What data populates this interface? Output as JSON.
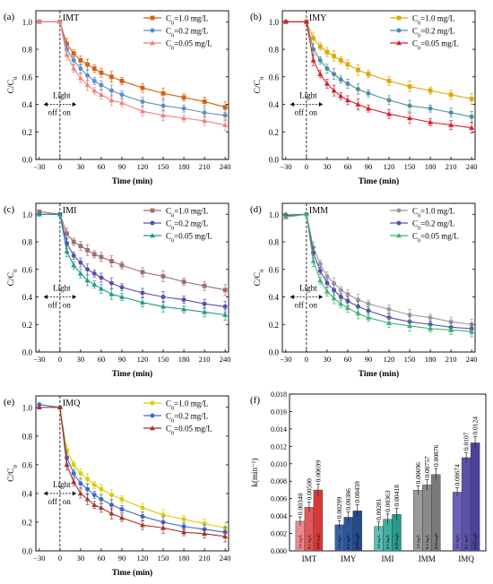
{
  "chart_data": [
    {
      "type": "line",
      "panel_label": "(a)",
      "inset_title": "IMT",
      "xlabel": "Time (min)",
      "ylabel": "C/C0",
      "xlim": [
        -35,
        245
      ],
      "ylim": [
        0.0,
        1.08
      ],
      "xticks": [
        "−30",
        "0",
        "30",
        "60",
        "90",
        "120",
        "150",
        "180",
        "210",
        "240"
      ],
      "yticks": [
        "0.0",
        "0.2",
        "0.4",
        "0.6",
        "0.8",
        "1.0"
      ],
      "light_label": "Light",
      "off_label": "off",
      "on_label": "on",
      "legend_position": "top-right",
      "x": [
        -30,
        0,
        10,
        20,
        30,
        40,
        50,
        60,
        75,
        90,
        120,
        150,
        180,
        210,
        240
      ],
      "series": [
        {
          "name": "C0=1.0 mg/L",
          "color": "#d95f0e",
          "marker": "square",
          "values": [
            1.0,
            1.0,
            0.84,
            0.77,
            0.72,
            0.69,
            0.66,
            0.63,
            0.6,
            0.57,
            0.52,
            0.48,
            0.45,
            0.42,
            0.38
          ]
        },
        {
          "name": "C0=0.2 mg/L",
          "color": "#5b8fc7",
          "marker": "circle",
          "values": [
            1.0,
            1.0,
            0.8,
            0.72,
            0.66,
            0.61,
            0.57,
            0.54,
            0.5,
            0.47,
            0.42,
            0.39,
            0.37,
            0.34,
            0.32
          ]
        },
        {
          "name": "C0=0.05 mg/L",
          "color": "#f08080",
          "marker": "triangle",
          "values": [
            1.0,
            1.0,
            0.76,
            0.66,
            0.59,
            0.54,
            0.5,
            0.47,
            0.43,
            0.41,
            0.35,
            0.32,
            0.3,
            0.28,
            0.25
          ]
        }
      ]
    },
    {
      "type": "line",
      "panel_label": "(b)",
      "inset_title": "IMY",
      "xlabel": "Time (min)",
      "ylabel": "C/C0",
      "xlim": [
        -35,
        245
      ],
      "ylim": [
        0.0,
        1.08
      ],
      "xticks": [
        "−30",
        "0",
        "30",
        "60",
        "90",
        "120",
        "150",
        "180",
        "210",
        "240"
      ],
      "yticks": [
        "0.0",
        "0.2",
        "0.4",
        "0.6",
        "0.8",
        "1.0"
      ],
      "light_label": "Light",
      "off_label": "off",
      "on_label": "on",
      "legend_position": "top-right",
      "x": [
        -30,
        0,
        10,
        20,
        30,
        40,
        50,
        60,
        75,
        90,
        120,
        150,
        180,
        210,
        240
      ],
      "series": [
        {
          "name": "C0=1.0 mg/L",
          "color": "#e0a800",
          "marker": "square",
          "values": [
            1.0,
            1.0,
            0.88,
            0.82,
            0.78,
            0.75,
            0.72,
            0.69,
            0.65,
            0.62,
            0.57,
            0.53,
            0.5,
            0.47,
            0.44
          ]
        },
        {
          "name": "C0=0.2 mg/L",
          "color": "#4a8fa0",
          "marker": "circle",
          "values": [
            1.0,
            1.0,
            0.8,
            0.72,
            0.66,
            0.62,
            0.58,
            0.55,
            0.51,
            0.48,
            0.43,
            0.39,
            0.37,
            0.34,
            0.31
          ]
        },
        {
          "name": "C0=0.05 mg/L",
          "color": "#d91c2a",
          "marker": "triangle",
          "values": [
            1.0,
            1.0,
            0.72,
            0.62,
            0.55,
            0.5,
            0.46,
            0.43,
            0.4,
            0.37,
            0.33,
            0.3,
            0.27,
            0.25,
            0.23
          ]
        }
      ]
    },
    {
      "type": "line",
      "panel_label": "(c)",
      "inset_title": "IMI",
      "xlabel": "Time (min)",
      "ylabel": "C/C0",
      "xlim": [
        -35,
        245
      ],
      "ylim": [
        0.0,
        1.08
      ],
      "xticks": [
        "−30",
        "0",
        "30",
        "60",
        "90",
        "120",
        "150",
        "180",
        "210",
        "240"
      ],
      "yticks": [
        "0.0",
        "0.2",
        "0.4",
        "0.6",
        "0.8",
        "1.0"
      ],
      "light_label": "Light",
      "off_label": "off",
      "on_label": "on",
      "legend_position": "top-right",
      "x": [
        -30,
        0,
        10,
        20,
        30,
        40,
        50,
        60,
        75,
        90,
        120,
        150,
        180,
        210,
        240
      ],
      "series": [
        {
          "name": "C0=1.0 mg/L",
          "color": "#a06e70",
          "marker": "square",
          "values": [
            1.02,
            1.0,
            0.86,
            0.8,
            0.77,
            0.74,
            0.71,
            0.69,
            0.66,
            0.63,
            0.58,
            0.55,
            0.51,
            0.48,
            0.45
          ]
        },
        {
          "name": "C0=0.2 mg/L",
          "color": "#5a4fb0",
          "marker": "circle",
          "values": [
            1.0,
            1.0,
            0.79,
            0.7,
            0.65,
            0.6,
            0.57,
            0.54,
            0.5,
            0.47,
            0.43,
            0.4,
            0.38,
            0.35,
            0.33
          ]
        },
        {
          "name": "C0=0.05 mg/L",
          "color": "#1f9a8a",
          "marker": "triangle",
          "values": [
            1.0,
            1.0,
            0.73,
            0.63,
            0.57,
            0.52,
            0.49,
            0.46,
            0.42,
            0.4,
            0.36,
            0.33,
            0.31,
            0.29,
            0.27
          ]
        }
      ]
    },
    {
      "type": "line",
      "panel_label": "(d)",
      "inset_title": "IMM",
      "xlabel": "Time (min)",
      "ylabel": "C/C0",
      "xlim": [
        -35,
        245
      ],
      "ylim": [
        0.0,
        1.08
      ],
      "xticks": [
        "−30",
        "0",
        "30",
        "60",
        "90",
        "120",
        "150",
        "180",
        "210",
        "240"
      ],
      "yticks": [
        "0.0",
        "0.2",
        "0.4",
        "0.6",
        "0.8",
        "1.0"
      ],
      "light_label": "Light",
      "off_label": "off",
      "on_label": "on",
      "legend_position": "top-right",
      "x": [
        -30,
        0,
        10,
        20,
        30,
        40,
        50,
        60,
        75,
        90,
        120,
        150,
        180,
        210,
        240
      ],
      "series": [
        {
          "name": "C0=1.0 mg/L",
          "color": "#9a9a9a",
          "marker": "circle",
          "values": [
            1.0,
            1.0,
            0.76,
            0.64,
            0.55,
            0.5,
            0.45,
            0.42,
            0.38,
            0.35,
            0.31,
            0.27,
            0.25,
            0.22,
            0.2
          ]
        },
        {
          "name": "C0=0.2 mg/L",
          "color": "#5a4fa8",
          "marker": "circle",
          "values": [
            0.99,
            1.0,
            0.72,
            0.59,
            0.5,
            0.45,
            0.4,
            0.37,
            0.33,
            0.3,
            0.25,
            0.22,
            0.2,
            0.18,
            0.17
          ]
        },
        {
          "name": "C0=0.05 mg/L",
          "color": "#3cb371",
          "marker": "triangle",
          "values": [
            0.98,
            1.0,
            0.66,
            0.52,
            0.44,
            0.39,
            0.35,
            0.32,
            0.28,
            0.25,
            0.21,
            0.19,
            0.17,
            0.16,
            0.15
          ]
        }
      ]
    },
    {
      "type": "line",
      "panel_label": "(e)",
      "inset_title": "IMQ",
      "xlabel": "Time (min)",
      "ylabel": "C/C0",
      "xlim": [
        -35,
        245
      ],
      "ylim": [
        0.0,
        1.08
      ],
      "xticks": [
        "−30",
        "0",
        "30",
        "60",
        "90",
        "120",
        "150",
        "180",
        "210",
        "240"
      ],
      "yticks": [
        "0.0",
        "0.2",
        "0.4",
        "0.6",
        "0.8",
        "1.0"
      ],
      "light_label": "Light",
      "off_label": "off",
      "on_label": "on",
      "legend_position": "top-right",
      "x": [
        -30,
        0,
        10,
        20,
        30,
        40,
        50,
        60,
        75,
        90,
        120,
        150,
        180,
        210,
        240
      ],
      "series": [
        {
          "name": "C0=1.0 mg/L",
          "color": "#d9cf00",
          "marker": "circle",
          "values": [
            1.02,
            1.0,
            0.7,
            0.6,
            0.54,
            0.5,
            0.46,
            0.43,
            0.39,
            0.36,
            0.3,
            0.25,
            0.22,
            0.19,
            0.16
          ]
        },
        {
          "name": "C0=0.2 mg/L",
          "color": "#4169c0",
          "marker": "circle",
          "values": [
            1.02,
            1.0,
            0.65,
            0.54,
            0.47,
            0.43,
            0.39,
            0.36,
            0.32,
            0.29,
            0.24,
            0.2,
            0.17,
            0.15,
            0.13
          ]
        },
        {
          "name": "C0=0.05 mg/L",
          "color": "#a8322a",
          "marker": "triangle",
          "values": [
            1.0,
            1.0,
            0.6,
            0.48,
            0.4,
            0.36,
            0.32,
            0.3,
            0.26,
            0.23,
            0.18,
            0.16,
            0.13,
            0.12,
            0.1
          ]
        }
      ]
    },
    {
      "type": "bar",
      "panel_label": "(f)",
      "ylabel": "k(min⁻¹)",
      "ylim": [
        0.0,
        0.018
      ],
      "yticks": [
        "0.000",
        "0.002",
        "0.004",
        "0.006",
        "0.008",
        "0.010",
        "0.012",
        "0.014",
        "0.016",
        "0.018"
      ],
      "categories": [
        "IMT",
        "IMY",
        "IMI",
        "IMM",
        "IMQ"
      ],
      "bar_inner_labels": [
        "1.0 mg/L",
        "0.2 mg/L",
        "0.05 mg/L"
      ],
      "groups": [
        {
          "category": "IMT",
          "colors": [
            "#f08a8a",
            "#e25858",
            "#d63a3a"
          ],
          "values": [
            0.0034,
            0.005,
            0.00699
          ],
          "labels": [
            "0.00340",
            "0.00500",
            "0.00699"
          ]
        },
        {
          "category": "IMY",
          "colors": [
            "#3a62a8",
            "#2f5597",
            "#244a8a"
          ],
          "values": [
            0.00299,
            0.00386,
            0.00459
          ],
          "labels": [
            "0.00299",
            "0.00386",
            "0.00459"
          ]
        },
        {
          "category": "IMI",
          "colors": [
            "#5cc0b5",
            "#3fae9f",
            "#2a9a8a"
          ],
          "values": [
            0.00281,
            0.00363,
            0.00418
          ],
          "labels": [
            "0.00281",
            "0.00363",
            "0.00418"
          ]
        },
        {
          "category": "IMM",
          "colors": [
            "#9a9a9a",
            "#8a8a8a",
            "#7a7a7a"
          ],
          "values": [
            0.00696,
            0.00757,
            0.00876
          ],
          "labels": [
            "0.00696",
            "0.00757",
            "0.00876"
          ]
        },
        {
          "category": "IMQ",
          "colors": [
            "#6a62b8",
            "#5a52aa",
            "#4a439c"
          ],
          "values": [
            0.00674,
            0.0107,
            0.0124
          ],
          "labels": [
            "0.00674",
            "0.0107",
            "0.0124"
          ]
        }
      ]
    }
  ]
}
